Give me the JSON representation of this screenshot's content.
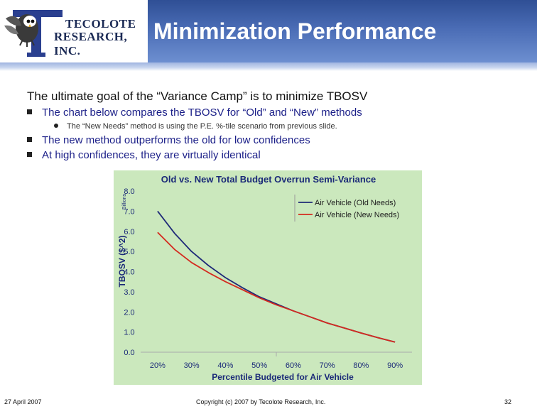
{
  "header": {
    "title": "Minimization Performance",
    "logo": {
      "line1": "TECOLOTE",
      "line2": "RESEARCH, INC."
    }
  },
  "content": {
    "heading": "The ultimate goal of the “Variance Camp” is to minimize TBOSV",
    "bullets": [
      "The chart below compares the TBOSV for “Old” and “New” methods",
      "The new method outperforms the old for low confidences",
      "At high confidences, they are virtually identical"
    ],
    "sub_bullet": "The “New Needs” method is using the P.E. %-tile scenario from previous slide."
  },
  "chart_data": {
    "type": "line",
    "title": "Old vs. New Total Budget Overrun Semi-Variance",
    "xlabel": "Percentile Budgeted for Air Vehicle",
    "ylabel": "TBOSV ($^2)",
    "yunit": "Billions",
    "x": [
      20,
      25,
      30,
      35,
      40,
      45,
      50,
      55,
      60,
      65,
      70,
      75,
      80,
      85,
      90
    ],
    "x_tick_labels": [
      "20%",
      "30%",
      "40%",
      "50%",
      "60%",
      "70%",
      "80%",
      "90%"
    ],
    "x_tick_values": [
      20,
      30,
      40,
      50,
      60,
      70,
      80,
      90
    ],
    "y_tick_labels": [
      "0.0",
      "1.0",
      "2.0",
      "3.0",
      "4.0",
      "5.0",
      "6.0",
      "7.0",
      "8.0"
    ],
    "ylim": [
      0,
      8
    ],
    "xlim": [
      15,
      95
    ],
    "grid": false,
    "legend": "top-right",
    "series": [
      {
        "name": "Air Vehicle (Old Needs)",
        "color": "#1f2a78",
        "values": [
          7.0,
          5.9,
          5.0,
          4.3,
          3.7,
          3.2,
          2.75,
          2.4,
          2.05,
          1.75,
          1.45,
          1.2,
          0.95,
          0.72,
          0.5
        ]
      },
      {
        "name": "Air Vehicle (New Needs)",
        "color": "#d42a1f",
        "values": [
          5.95,
          5.1,
          4.45,
          3.95,
          3.5,
          3.1,
          2.7,
          2.35,
          2.05,
          1.75,
          1.45,
          1.2,
          0.95,
          0.72,
          0.5
        ]
      }
    ]
  },
  "footer": {
    "date": "27 April 2007",
    "copyright": "Copyright (c) 2007 by Tecolote Research, Inc.",
    "page": "32"
  }
}
